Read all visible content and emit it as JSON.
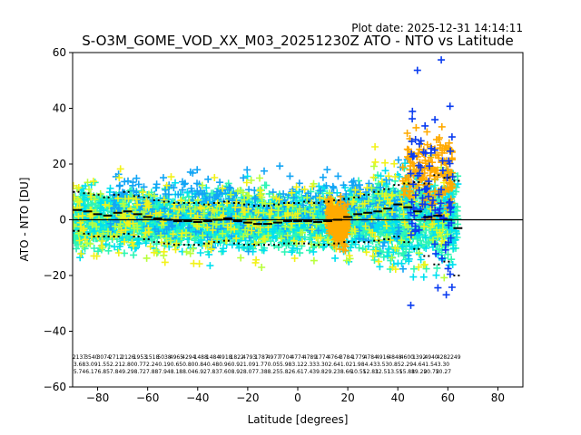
{
  "chart_data": {
    "type": "scatter",
    "title": "S-O3M_GOME_VOD_XX_M03_20251230Z ATO - NTO vs Latitude",
    "subtitle": "Plot date: 2025-12-31 14:14:11",
    "xlabel": "Latitude [degrees]",
    "ylabel": "ATO - NTO [DU]",
    "xlim": [
      -90,
      90
    ],
    "ylim": [
      -60,
      60
    ],
    "xticks": [
      -80,
      -60,
      -40,
      -20,
      0,
      20,
      40,
      60,
      80
    ],
    "yticks": [
      -60,
      -40,
      -20,
      0,
      20,
      40,
      60
    ],
    "zero_line": 0,
    "bin_centers": [
      -88,
      -84,
      -80,
      -76,
      -72,
      -68,
      -64,
      -60,
      -56,
      -52,
      -48,
      -44,
      -40,
      -36,
      -32,
      -28,
      -24,
      -20,
      -16,
      -12,
      -8,
      -4,
      0,
      4,
      8,
      12,
      16,
      20,
      24,
      28,
      32,
      36,
      40,
      44,
      48,
      52,
      56,
      60,
      64
    ],
    "series": [
      {
        "name": "mean",
        "style": "solid-dash",
        "values": [
          3.5,
          3.0,
          2.0,
          1.5,
          2.5,
          3.0,
          2.0,
          1.0,
          0.5,
          0.0,
          -0.5,
          -0.5,
          -0.8,
          -0.5,
          0.0,
          0.5,
          -0.5,
          -1.0,
          -1.5,
          -1.5,
          -1.0,
          -0.5,
          -0.5,
          -0.5,
          -0.8,
          -0.5,
          0.0,
          1.0,
          2.0,
          2.5,
          3.0,
          4.0,
          5.5,
          4.5,
          3.0,
          1.0,
          1.5,
          0.0,
          -3.0
        ]
      },
      {
        "name": "mean + sigma",
        "style": "dotted",
        "values": [
          10,
          9.5,
          9,
          8,
          9,
          10,
          8.5,
          8,
          7,
          6.5,
          6,
          6,
          6,
          5.5,
          6,
          6.5,
          6,
          5.5,
          5,
          5,
          5.5,
          6,
          6,
          6.5,
          6,
          6.5,
          7,
          7.5,
          8,
          9,
          10,
          11,
          12.5,
          13,
          13.5,
          13,
          16,
          15,
          14
        ]
      },
      {
        "name": "mean - sigma",
        "style": "dotted",
        "values": [
          -4,
          -5,
          -6,
          -6,
          -6,
          -5,
          -6,
          -7,
          -8,
          -8.5,
          -9,
          -9,
          -9,
          -8.5,
          -8,
          -7.5,
          -8.5,
          -9,
          -9,
          -9,
          -9,
          -8.5,
          -8.5,
          -8.5,
          -9,
          -9,
          -8.5,
          -8,
          -8,
          -8,
          -7.5,
          -7,
          -6,
          -8,
          -10.5,
          -13,
          -16,
          -15,
          -20
        ]
      }
    ],
    "color_groups": [
      {
        "name": "main",
        "color": "#2ef5b5",
        "x_range": [
          -90,
          64
        ],
        "mean": 0,
        "spread": 12
      },
      {
        "name": "aqua",
        "color": "#00e0f0",
        "x_range": [
          -90,
          64
        ],
        "mean": 0,
        "spread": 15
      },
      {
        "name": "sky",
        "color": "#12a5f5",
        "x_range": [
          -75,
          45
        ],
        "mean": 5,
        "spread": 16
      },
      {
        "name": "lime",
        "color": "#b8ff3c",
        "x_range": [
          -90,
          60
        ],
        "mean": 0,
        "spread": 17
      },
      {
        "name": "yellow",
        "color": "#f2f21a",
        "x_range": [
          -90,
          60
        ],
        "mean": 0,
        "spread": 18
      },
      {
        "name": "orange",
        "color": "#ffaa00",
        "x_range": [
          12,
          20
        ],
        "mean": 2,
        "spread": 9
      },
      {
        "name": "orange-north",
        "color": "#ffaa00",
        "x_range": [
          42,
          62
        ],
        "mean": 18,
        "spread": 12
      },
      {
        "name": "blue",
        "color": "#0a3cf0",
        "x_range": [
          45,
          62
        ],
        "mean": 10,
        "spread": 28
      }
    ],
    "bin_labels": [
      [
        "2137",
        "3.68",
        "5.74"
      ],
      [
        "3540",
        "3.09",
        "6.17"
      ],
      [
        "3074",
        "1.55",
        "6.85"
      ],
      [
        "2712",
        "2.21",
        "7.84"
      ],
      [
        "2126",
        "2.80",
        "9.29"
      ],
      [
        "1953",
        "0.77",
        "8.72"
      ],
      [
        "1518",
        "2.24",
        "7.88"
      ],
      [
        "5038",
        "0.19",
        "7.94"
      ],
      [
        "4965",
        "0.65",
        "8.18"
      ],
      [
        "4294",
        "0.80",
        "8.04"
      ],
      [
        "1488",
        "0.84",
        "6.92"
      ],
      [
        "1484",
        "0.48",
        "7.83"
      ],
      [
        "4918",
        "0.96",
        "7.60"
      ],
      [
        "1822",
        "0.92",
        "8.92"
      ],
      [
        "4793",
        "1.09",
        "8.07"
      ],
      [
        "1787",
        "1.77",
        "7.38"
      ],
      [
        "4977",
        "0.05",
        "8.25"
      ],
      [
        "7704",
        "5.98",
        "5.82"
      ],
      [
        "4774",
        "3.12",
        "6.61"
      ],
      [
        "4789",
        "2.33",
        "7.43"
      ],
      [
        "1774",
        "3.30",
        "9.82"
      ],
      [
        "4764",
        "2.64",
        "9.23"
      ],
      [
        "3784",
        "1.02",
        "8.66"
      ],
      [
        "1779",
        "1.98",
        "10.55"
      ],
      [
        "4784",
        "4.43",
        "12.83"
      ],
      [
        "4916",
        "3.53",
        "12.51"
      ],
      [
        "4848",
        "0.85",
        "13.55"
      ],
      [
        "4600",
        "2.29",
        "15.88"
      ],
      [
        "1392",
        "4.64",
        "19.29"
      ],
      [
        "4940",
        "1.54",
        "20.75"
      ],
      [
        "4282",
        "3.30",
        "20.27"
      ],
      [
        "249",
        "",
        ""
      ]
    ]
  }
}
